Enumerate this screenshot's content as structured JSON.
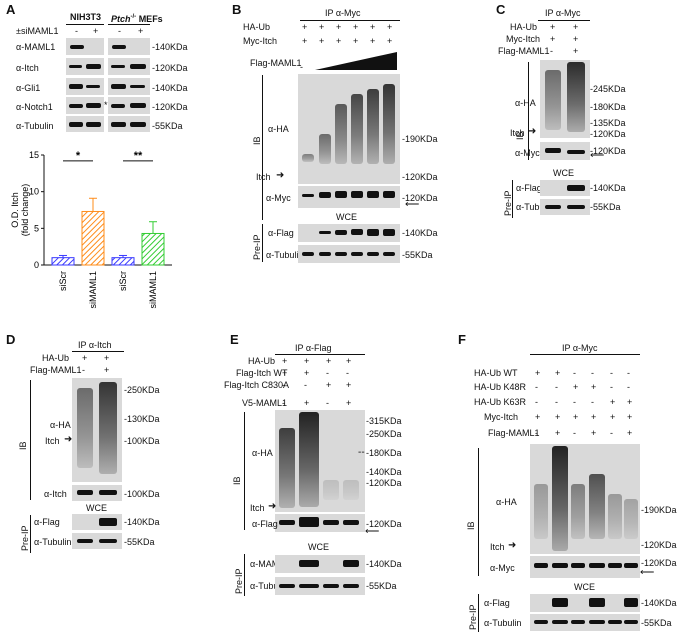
{
  "panelA": {
    "letter": "A",
    "siRNA_label": "±siMAML1",
    "cell1": "NIH3T3",
    "cell2_prefix": "Ptch",
    "cell2_sup": "-/-",
    "cell2_suffix": " MEFs",
    "signs": [
      "-",
      "+",
      "-",
      "+"
    ],
    "rows": [
      {
        "label": "α-MAML1",
        "mw": "-140KDa"
      },
      {
        "label": "α-Itch",
        "mw": "-120KDa"
      },
      {
        "label": "α-Gli1",
        "mw": "-140KDa"
      },
      {
        "label": "α-Notch1",
        "mw": "-120KDa"
      },
      {
        "label": "α-Tubulin",
        "mw": "-55KDa"
      }
    ],
    "star": "*"
  },
  "chart_data": {
    "type": "bar",
    "categories": [
      "siScr",
      "siMAML1",
      "siScr",
      "siMAML1"
    ],
    "values": [
      1.0,
      7.3,
      1.0,
      4.3
    ],
    "errors": [
      0.3,
      1.8,
      0.3,
      1.6
    ],
    "ylabel_line1": "O.D. Itch",
    "ylabel_line2": "(fold change)",
    "ylim": [
      0,
      15
    ],
    "yticks": [
      "0",
      "5",
      "10",
      "15"
    ],
    "significance": [
      "*",
      "**"
    ],
    "colors": [
      "#3a3aff",
      "#ff8c1a",
      "#3a3aff",
      "#33cc33"
    ]
  },
  "panelB": {
    "letter": "B",
    "ip": "IP α-Myc",
    "treat": [
      {
        "label": "HA-Ub",
        "signs": [
          "+",
          "+",
          "+",
          "+",
          "+",
          "+"
        ]
      },
      {
        "label": "Myc-Itch",
        "signs": [
          "+",
          "+",
          "+",
          "+",
          "+",
          "+"
        ]
      }
    ],
    "flag_label": "Flag-MAML1",
    "flag_first": "-",
    "ib": "IB",
    "ha": "α-HA",
    "itch": "Itch",
    "myc": "α-Myc",
    "wce": "WCE",
    "preip": "Pre-IP",
    "flag": "α-Flag",
    "tub": "α-Tubulin",
    "mw": [
      "-190KDa",
      "-120KDa",
      "-120KDa",
      "-140KDa",
      "-55KDa"
    ]
  },
  "panelC": {
    "letter": "C",
    "ip": "IP α-Myc",
    "treat": [
      {
        "label": "HA-Ub",
        "signs": [
          "+",
          "+"
        ]
      },
      {
        "label": "Myc-Itch",
        "signs": [
          "+",
          "+"
        ]
      },
      {
        "label": "Flag-MAML1",
        "signs": [
          "-",
          "+"
        ]
      }
    ],
    "ib": "IB",
    "ha": "α-HA",
    "itch": "Itch",
    "myc": "α-Myc",
    "wce": "WCE",
    "preip": "Pre-IP",
    "flag": "α-Flag",
    "tub": "α-Tubulin",
    "mw": [
      "-245KDa",
      "-180KDa",
      "-135KDa",
      "-120KDa",
      "-120KDa",
      "-140KDa",
      "-55KDa"
    ]
  },
  "panelD": {
    "letter": "D",
    "ip": "IP α-Itch",
    "treat": [
      {
        "label": "HA-Ub",
        "signs": [
          "+",
          "+"
        ]
      },
      {
        "label": "Flag-MAML1",
        "signs": [
          "-",
          "+"
        ]
      }
    ],
    "ib": "IB",
    "ha": "α-HA",
    "itch": "Itch",
    "itchab": "α-Itch",
    "wce": "WCE",
    "preip": "Pre-IP",
    "flag": "α-Flag",
    "tub": "α-Tubulin",
    "mw": [
      "-250KDa",
      "-130KDa",
      "-100KDa",
      "-100KDa",
      "-140KDa",
      "-55KDa"
    ]
  },
  "panelE": {
    "letter": "E",
    "ip": "IP α-Flag",
    "treat": [
      {
        "label": "HA-Ub",
        "signs": [
          "+",
          "+",
          "+",
          "+"
        ]
      },
      {
        "label": "Flag-Itch WT",
        "signs": [
          "+",
          "+",
          "-",
          "-"
        ]
      },
      {
        "label": "Flag-Itch C830A",
        "signs": [
          "-",
          "-",
          "+",
          "+"
        ]
      },
      {
        "label": "V5-MAML1",
        "signs": [
          "-",
          "+",
          "-",
          "+"
        ]
      }
    ],
    "ib": "IB",
    "ha": "α-HA",
    "itch": "Itch",
    "flag": "α-Flag",
    "wce": "WCE",
    "preip": "Pre-IP",
    "maml": "α-MAML1",
    "tub": "α-Tubulin",
    "mw": [
      "-315KDa",
      "-250KDa",
      "-180KDa",
      "-140KDa",
      "-120KDa",
      "-120KDa",
      "-140KDa",
      "-55KDa"
    ]
  },
  "panelF": {
    "letter": "F",
    "ip": "IP α-Myc",
    "treat": [
      {
        "label": "HA-Ub WT",
        "signs": [
          "+",
          "+",
          "-",
          "-",
          "-",
          "-"
        ]
      },
      {
        "label": "HA-Ub K48R",
        "signs": [
          "-",
          "-",
          "+",
          "+",
          "-",
          "-"
        ]
      },
      {
        "label": "HA-Ub K63R",
        "signs": [
          "-",
          "-",
          "-",
          "-",
          "+",
          "+"
        ]
      },
      {
        "label": "Myc-Itch",
        "signs": [
          "+",
          "+",
          "+",
          "+",
          "+",
          "+"
        ]
      },
      {
        "label": "Flag-MAML1",
        "signs": [
          "-",
          "+",
          "-",
          "+",
          "-",
          "+"
        ]
      }
    ],
    "ib": "IB",
    "ha": "α-HA",
    "itch": "Itch",
    "myc": "α-Myc",
    "wce": "WCE",
    "preip": "Pre-IP",
    "flag": "α-Flag",
    "tub": "α-Tubulin",
    "mw": [
      "-190KDa",
      "-120KDa",
      "-120KDa",
      "-140KDa",
      "-55KDa"
    ]
  }
}
